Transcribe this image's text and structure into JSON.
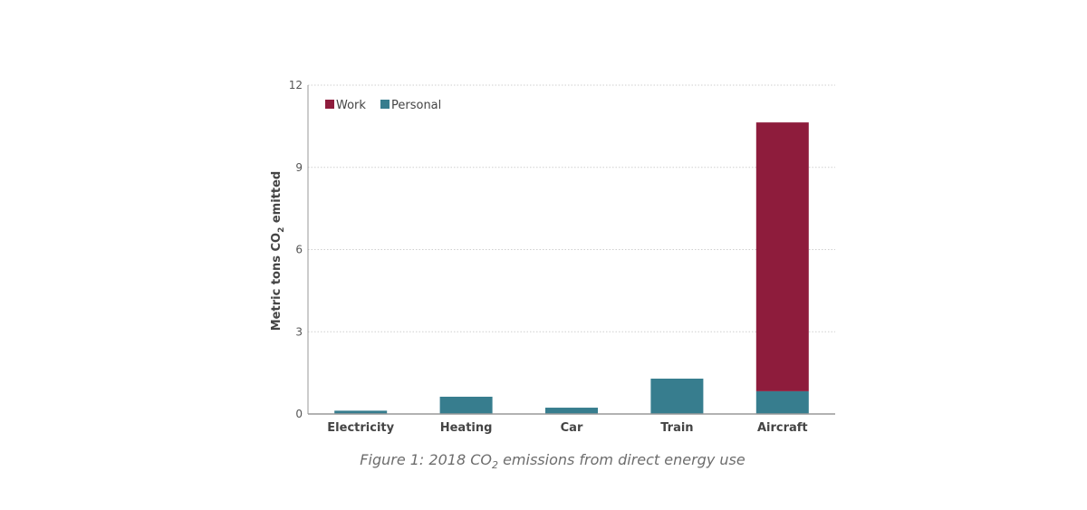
{
  "chart_data": {
    "type": "bar",
    "stacked": true,
    "title": "",
    "xlabel": "",
    "ylabel": "Metric tons CO2 emitted",
    "ylabel_parts": {
      "pre": "Metric tons CO",
      "sub": "2",
      "post": " emitted"
    },
    "ylim": [
      0,
      12
    ],
    "yticks": [
      0,
      3,
      6,
      9,
      12
    ],
    "grid": true,
    "legend_position": "top-left",
    "categories": [
      "Electricity",
      "Heating",
      "Car",
      "Train",
      "Aircraft"
    ],
    "series": [
      {
        "name": "Personal",
        "color": "#377d8e",
        "values": [
          0.12,
          0.63,
          0.23,
          1.29,
          0.83
        ]
      },
      {
        "name": "Work",
        "color": "#8e1c3c",
        "values": [
          0,
          0,
          0,
          0,
          9.81
        ]
      }
    ],
    "legend_order": [
      "Work",
      "Personal"
    ]
  },
  "caption": {
    "pre": "Figure 1: 2018 CO",
    "sub": "2",
    "post": " emissions from direct energy use"
  }
}
